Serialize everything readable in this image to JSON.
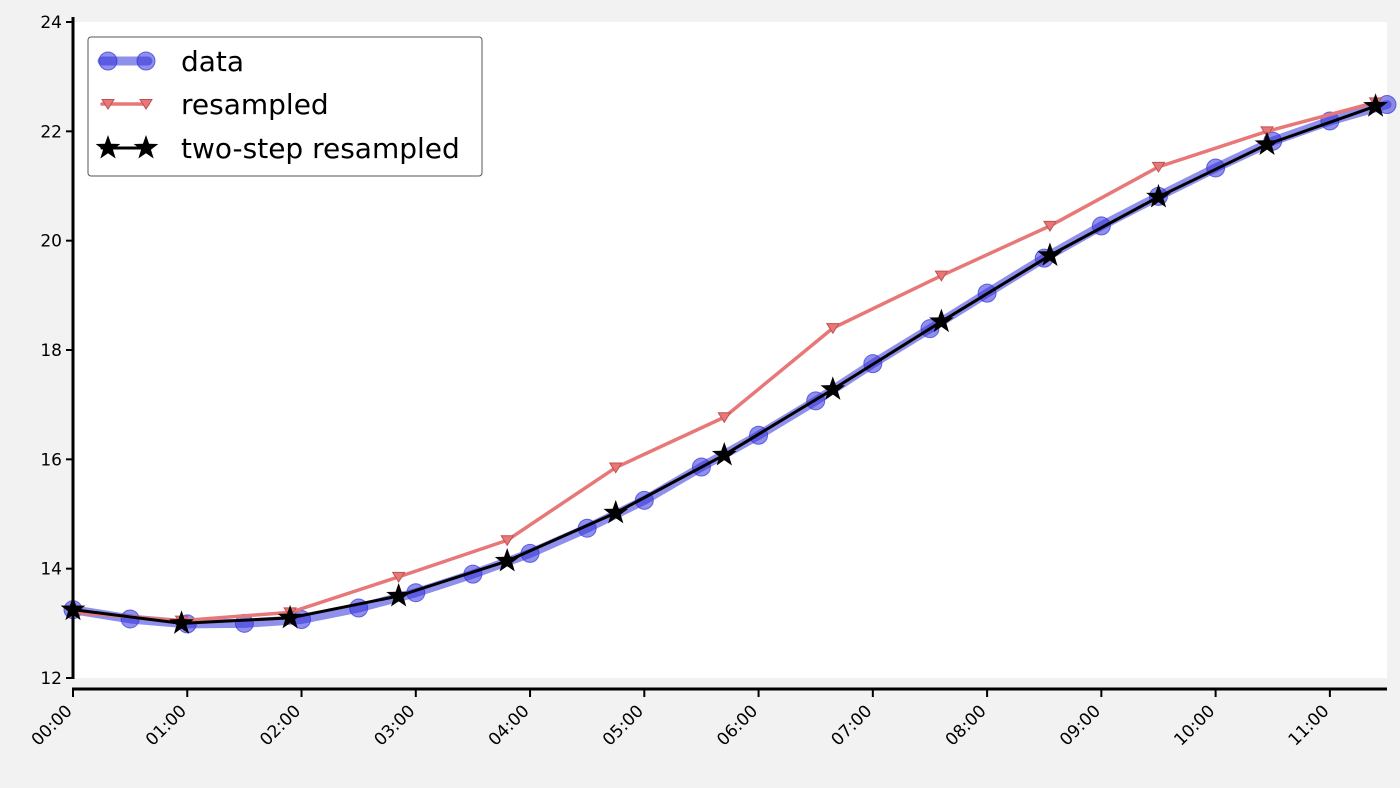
{
  "chart_data": {
    "type": "line",
    "title": "",
    "xlabel": "",
    "ylabel": "",
    "x_unit": "hours",
    "xlim": [
      0,
      11.5
    ],
    "ylim": [
      12,
      24
    ],
    "x_ticks": [
      {
        "value": 0,
        "label": "00:00"
      },
      {
        "value": 1,
        "label": "01:00"
      },
      {
        "value": 2,
        "label": "02:00"
      },
      {
        "value": 3,
        "label": "03:00"
      },
      {
        "value": 4,
        "label": "04:00"
      },
      {
        "value": 5,
        "label": "05:00"
      },
      {
        "value": 6,
        "label": "06:00"
      },
      {
        "value": 7,
        "label": "07:00"
      },
      {
        "value": 8,
        "label": "08:00"
      },
      {
        "value": 9,
        "label": "09:00"
      },
      {
        "value": 10,
        "label": "10:00"
      },
      {
        "value": 11,
        "label": "11:00"
      }
    ],
    "y_ticks": [
      12,
      14,
      16,
      18,
      20,
      22,
      24
    ],
    "grid": false,
    "legend": {
      "position": "top-left"
    },
    "series": [
      {
        "name": "data",
        "color": "#3333dd",
        "marker": "circle",
        "x": [
          0,
          0.5,
          1,
          1.5,
          2,
          2.5,
          3,
          3.5,
          4,
          4.5,
          5,
          5.5,
          6,
          6.5,
          7,
          7.5,
          8,
          8.5,
          9,
          9.5,
          10,
          10.5,
          11,
          11.5
        ],
        "y": [
          13.25,
          13.08,
          12.99,
          13.0,
          13.07,
          13.28,
          13.56,
          13.9,
          14.28,
          14.74,
          15.25,
          15.86,
          16.44,
          17.07,
          17.75,
          18.39,
          19.04,
          19.68,
          20.27,
          20.81,
          21.33,
          21.82,
          22.19,
          22.49
        ]
      },
      {
        "name": "resampled",
        "color": "#e87878",
        "marker": "triangle-down",
        "x": [
          0,
          0.95,
          1.9,
          2.85,
          3.8,
          4.75,
          5.7,
          6.65,
          7.6,
          8.55,
          9.5,
          10.45,
          11.4
        ],
        "y": [
          13.2,
          13.05,
          13.2,
          13.85,
          14.52,
          15.85,
          16.77,
          18.4,
          19.36,
          20.27,
          21.35,
          22.0,
          22.53
        ]
      },
      {
        "name": "two-step resampled",
        "color": "#000000",
        "marker": "star",
        "x": [
          0,
          0.95,
          1.9,
          2.85,
          3.8,
          4.75,
          5.7,
          6.65,
          7.6,
          8.55,
          9.5,
          10.45,
          11.4
        ],
        "y": [
          13.25,
          13.0,
          13.1,
          13.5,
          14.14,
          15.02,
          16.08,
          17.28,
          18.52,
          19.73,
          20.8,
          21.76,
          22.46
        ]
      }
    ]
  }
}
